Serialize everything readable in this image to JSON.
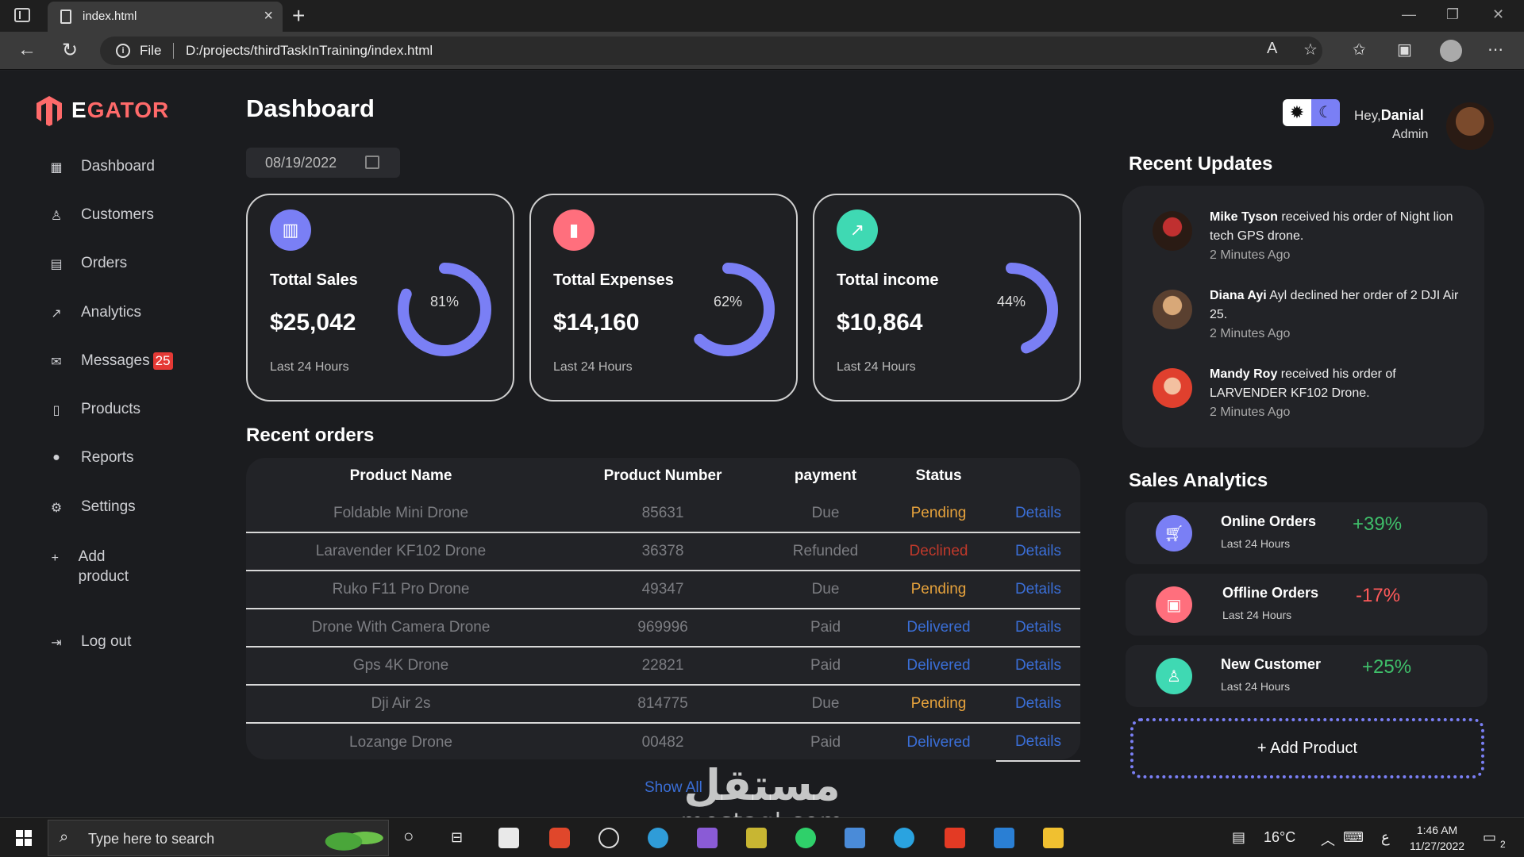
{
  "browser": {
    "tab_title": "index.html",
    "tab_close": "×",
    "new_tab": "+",
    "address_scheme": "File",
    "address_url": "D:/projects/thirdTaskInTraining/index.html"
  },
  "logo": {
    "prefix": "E",
    "text": "GATOR"
  },
  "sidebar": {
    "items": [
      {
        "label": "Dashboard",
        "icon": "grid-icon"
      },
      {
        "label": "Customers",
        "icon": "user-icon"
      },
      {
        "label": "Orders",
        "icon": "clipboard-icon"
      },
      {
        "label": "Analytics",
        "icon": "chart-icon"
      },
      {
        "label": "Messages",
        "icon": "mail-icon",
        "badge": "25"
      },
      {
        "label": "Products",
        "icon": "clipboard-icon"
      },
      {
        "label": "Reports",
        "icon": "info-icon"
      },
      {
        "label": "Settings",
        "icon": "gear-icon"
      },
      {
        "label": "Add product",
        "icon": "plus-icon"
      },
      {
        "label": "Log out",
        "icon": "logout-icon"
      }
    ]
  },
  "main": {
    "title": "Dashboard",
    "date": "08/19/2022",
    "cards": [
      {
        "title": "Tottal Sales",
        "value": "$25,042",
        "percent": "81%",
        "percent_value": 81,
        "period": "Last 24 Hours",
        "icon": "bar-chart-icon",
        "icon_color": "#7a7ff5"
      },
      {
        "title": "Tottal Expenses",
        "value": "$14,160",
        "percent": "62%",
        "percent_value": 62,
        "period": "Last 24 Hours",
        "icon": "bars-icon",
        "icon_color": "#ff6f7d"
      },
      {
        "title": "Tottal income",
        "value": "$10,864",
        "percent": "44%",
        "percent_value": 44,
        "period": "Last 24 Hours",
        "icon": "trend-up-icon",
        "icon_color": "#3fd9b3"
      }
    ],
    "recent_orders": {
      "title": "Recent orders",
      "columns": [
        "Product Name",
        "Product Number",
        "payment",
        "Status",
        ""
      ],
      "rows": [
        {
          "name": "Foldable Mini Drone",
          "number": "85631",
          "payment": "Due",
          "status": "Pending",
          "action": "Details"
        },
        {
          "name": "Laravender KF102 Drone",
          "number": "36378",
          "payment": "Refunded",
          "status": "Declined",
          "action": "Details"
        },
        {
          "name": "Ruko F11 Pro Drone",
          "number": "49347",
          "payment": "Due",
          "status": "Pending",
          "action": "Details"
        },
        {
          "name": "Drone With Camera Drone",
          "number": "969996",
          "payment": "Paid",
          "status": "Delivered",
          "action": "Details"
        },
        {
          "name": "Gps 4K Drone",
          "number": "22821",
          "payment": "Paid",
          "status": "Delivered",
          "action": "Details"
        },
        {
          "name": "Dji Air 2s",
          "number": "814775",
          "payment": "Due",
          "status": "Pending",
          "action": "Details"
        },
        {
          "name": "Lozange Drone",
          "number": "00482",
          "payment": "Paid",
          "status": "Delivered",
          "action": "Details"
        }
      ],
      "show_all": "Show All"
    }
  },
  "header": {
    "greeting": "Hey,",
    "user_name": "Danial",
    "user_role": "Admin"
  },
  "recent_updates": {
    "title": "Recent Updates",
    "items": [
      {
        "name": "Mike Tyson",
        "text": " received his order of Night lion tech GPS drone.",
        "time": "2 Minutes Ago"
      },
      {
        "name": "Diana Ayi",
        "text": " Ayl declined her order of 2 DJI Air 25.",
        "time": "2 Minutes Ago"
      },
      {
        "name": "Mandy Roy",
        "text": " received his order of LARVENDER KF102 Drone.",
        "time": "2 Minutes Ago"
      }
    ]
  },
  "sales_analytics": {
    "title": "Sales Analytics",
    "items": [
      {
        "title": "Online Orders",
        "period": "Last 24 Hours",
        "percent": "+39%",
        "color": "#3fbf6a",
        "icon": "cart-icon",
        "icon_color": "#7a7ff5"
      },
      {
        "title": "Offline Orders",
        "period": "Last 24 Hours",
        "percent": "-17%",
        "color": "#ff5a5a",
        "icon": "bag-icon",
        "icon_color": "#ff6f7d"
      },
      {
        "title": "New Customer",
        "period": "Last 24 Hours",
        "percent": "+25%",
        "color": "#3fbf6a",
        "icon": "person-icon",
        "icon_color": "#3fd9b3"
      }
    ],
    "add_button": "+ Add Product"
  },
  "taskbar": {
    "search_placeholder": "Type here to search",
    "weather": "16°C",
    "time": "1:46 AM",
    "date": "11/27/2022",
    "notifications": "2"
  },
  "watermark": {
    "arabic": "مستقل",
    "latin": "mostaql.com"
  }
}
